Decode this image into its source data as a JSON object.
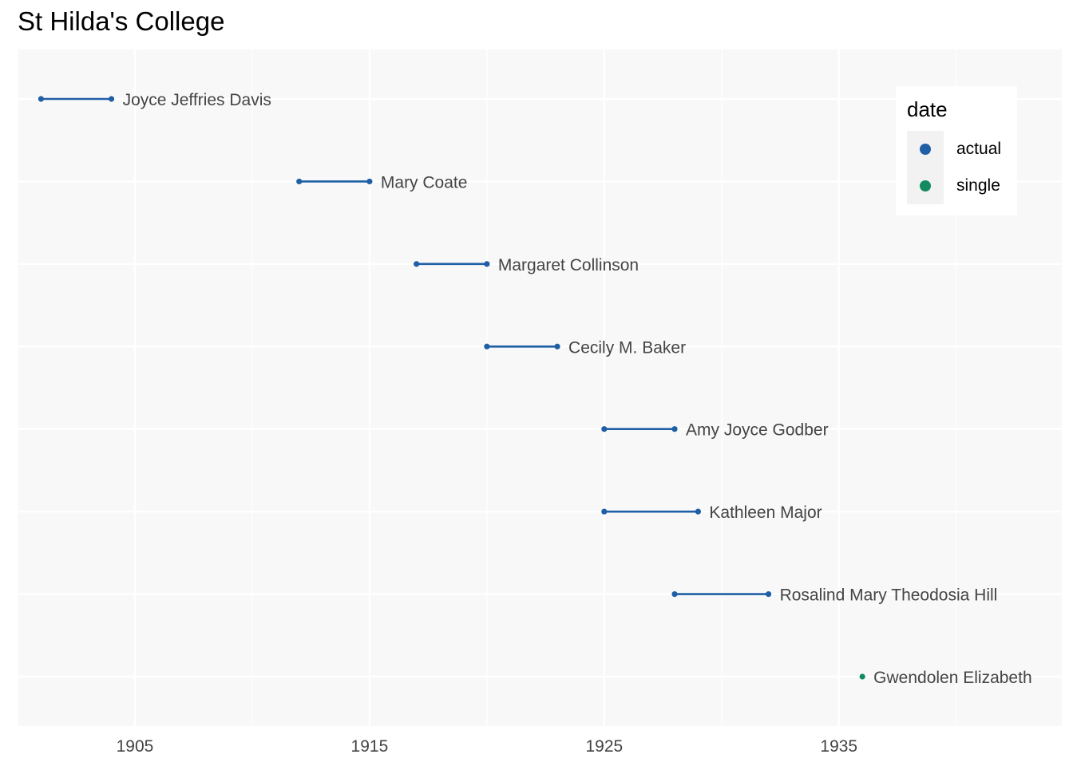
{
  "colors": {
    "actual": "#1F5FA6",
    "single": "#138A60",
    "panel": "#F8F8F8",
    "grid": "#FFFFFF",
    "text": "#444444"
  },
  "chart_data": {
    "type": "dumbbell",
    "title": "St Hilda's College",
    "xlabel": "",
    "ylabel": "",
    "xlim": [
      1900,
      1944.5
    ],
    "x_ticks": [
      1905,
      1915,
      1925,
      1935
    ],
    "grid": true,
    "legend": {
      "title": "date",
      "placement": "top-right",
      "entries": [
        {
          "label": "actual",
          "color_key": "actual"
        },
        {
          "label": "single",
          "color_key": "single"
        }
      ]
    },
    "rows": [
      {
        "name": "Joyce Jeffries Davis",
        "start": 1901,
        "end": 1904,
        "date": "actual"
      },
      {
        "name": "Mary Coate",
        "start": 1912,
        "end": 1915,
        "date": "actual"
      },
      {
        "name": "Margaret Collinson",
        "start": 1917,
        "end": 1920,
        "date": "actual"
      },
      {
        "name": "Cecily M. Baker",
        "start": 1920,
        "end": 1923,
        "date": "actual"
      },
      {
        "name": "Amy Joyce Godber",
        "start": 1925,
        "end": 1928,
        "date": "actual"
      },
      {
        "name": "Kathleen Major",
        "start": 1925,
        "end": 1929,
        "date": "actual"
      },
      {
        "name": "Rosalind Mary Theodosia Hill",
        "start": 1928,
        "end": 1932,
        "date": "actual"
      },
      {
        "name": "Gwendolen Elizabeth",
        "start": 1936,
        "end": 1936,
        "date": "single"
      }
    ]
  }
}
